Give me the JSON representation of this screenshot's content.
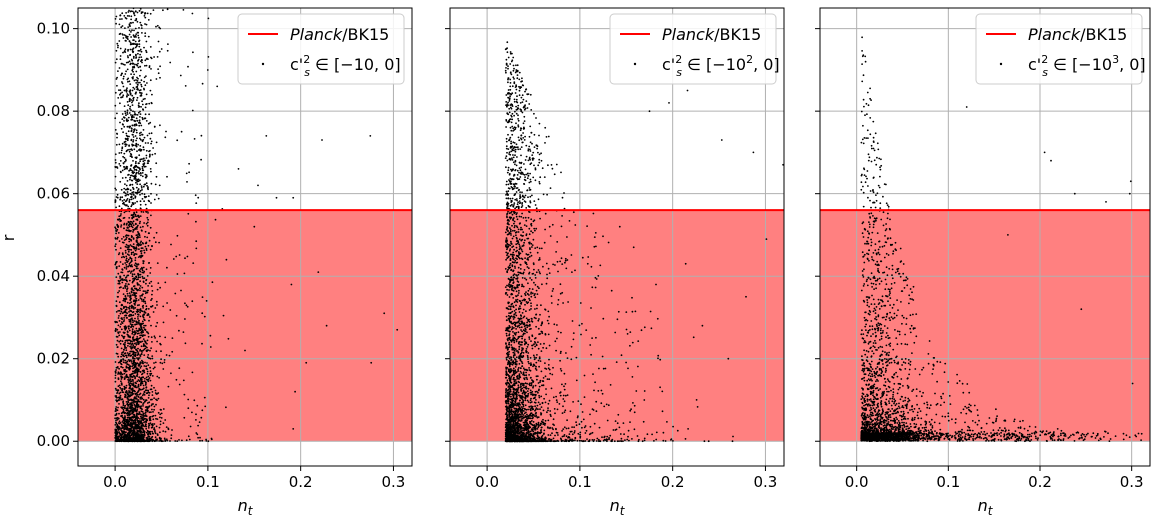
{
  "chart_data": [
    {
      "type": "scatter",
      "panel": "left",
      "xlabel": "n",
      "xlabel_sub": "t",
      "ylabel": "r",
      "xlim": [
        -0.04,
        0.32
      ],
      "ylim": [
        -0.006,
        0.105
      ],
      "xticks": [
        0.0,
        0.1,
        0.2,
        0.3
      ],
      "xtick_labels": [
        "0.0",
        "0.1",
        "0.2",
        "0.3"
      ],
      "yticks": [
        0.0,
        0.02,
        0.04,
        0.06,
        0.08,
        0.1
      ],
      "ytick_labels": [
        "0.00",
        "0.02",
        "0.04",
        "0.06",
        "0.08",
        "0.10"
      ],
      "show_yticklabels": true,
      "grid": true,
      "legend_position": "top-right",
      "constraint": {
        "name_italic": "Planck",
        "name_rest": "/BK15",
        "r_max": 0.056,
        "color": "#ff0000",
        "fill_color": "#ff8080"
      },
      "scatter_series": {
        "legend_prefix": "c'",
        "legend_sup": "2",
        "legend_sub": "s",
        "legend_suffix": " ∈ [−10, 0]",
        "range_min": -10,
        "color": "#000000",
        "n_points": 3600,
        "nt_core_center": 0.02,
        "nt_core_width": 0.012,
        "r_distribution": "concentrated near 0, vertical band up to above 0.10"
      },
      "outlier_points": [
        [
          0.11,
          0.086
        ],
        [
          0.163,
          0.074
        ],
        [
          0.223,
          0.073
        ],
        [
          0.275,
          0.074
        ],
        [
          0.154,
          0.062
        ],
        [
          0.133,
          0.066
        ],
        [
          0.174,
          0.059
        ],
        [
          0.192,
          0.059
        ],
        [
          0.15,
          0.052
        ],
        [
          0.19,
          0.038
        ],
        [
          0.29,
          0.031
        ],
        [
          0.304,
          0.027
        ],
        [
          0.276,
          0.019
        ],
        [
          0.206,
          0.019
        ],
        [
          0.194,
          0.012
        ],
        [
          0.192,
          0.003
        ],
        [
          0.219,
          0.041
        ],
        [
          0.228,
          0.028
        ],
        [
          0.14,
          0.022
        ],
        [
          0.12,
          0.044
        ]
      ]
    },
    {
      "type": "scatter",
      "panel": "middle",
      "xlabel": "n",
      "xlabel_sub": "t",
      "xlim": [
        -0.04,
        0.32
      ],
      "ylim": [
        -0.006,
        0.105
      ],
      "xticks": [
        0.0,
        0.1,
        0.2,
        0.3
      ],
      "xtick_labels": [
        "0.0",
        "0.1",
        "0.2",
        "0.3"
      ],
      "yticks": [
        0.0,
        0.02,
        0.04,
        0.06,
        0.08,
        0.1
      ],
      "show_yticklabels": false,
      "grid": true,
      "legend_position": "top-right",
      "constraint": {
        "name_italic": "Planck",
        "name_rest": "/BK15",
        "r_max": 0.056,
        "color": "#ff0000",
        "fill_color": "#ff8080"
      },
      "scatter_series": {
        "legend_prefix": "c'",
        "legend_sup": "2",
        "legend_sub": "s",
        "legend_suffix_pre": " ∈ [−10",
        "legend_exp": "2",
        "legend_suffix_post": ", 0]",
        "range_min": -100,
        "color": "#000000",
        "n_points": 3600,
        "nt_core_center": 0.025,
        "nt_core_width": 0.03,
        "r_distribution": "dense cluster near origin, tail to larger n_t"
      },
      "outlier_points": [
        [
          0.24,
          0.1
        ],
        [
          0.196,
          0.082
        ],
        [
          0.216,
          0.085
        ],
        [
          0.287,
          0.07
        ],
        [
          0.253,
          0.073
        ],
        [
          0.319,
          0.067
        ],
        [
          0.175,
          0.08
        ],
        [
          0.301,
          0.049
        ],
        [
          0.279,
          0.035
        ],
        [
          0.232,
          0.028
        ],
        [
          0.26,
          0.02
        ],
        [
          0.214,
          0.043
        ],
        [
          0.182,
          0.038
        ],
        [
          0.143,
          0.052
        ],
        [
          0.158,
          0.047
        ]
      ]
    },
    {
      "type": "scatter",
      "panel": "right",
      "xlabel": "n",
      "xlabel_sub": "t",
      "xlim": [
        -0.04,
        0.32
      ],
      "ylim": [
        -0.006,
        0.105
      ],
      "xticks": [
        0.0,
        0.1,
        0.2,
        0.3
      ],
      "xtick_labels": [
        "0.0",
        "0.1",
        "0.2",
        "0.3"
      ],
      "yticks": [
        0.0,
        0.02,
        0.04,
        0.06,
        0.08,
        0.1
      ],
      "show_yticklabels": false,
      "grid": true,
      "legend_position": "top-right",
      "constraint": {
        "name_italic": "Planck",
        "name_rest": "/BK15",
        "r_max": 0.056,
        "color": "#ff0000",
        "fill_color": "#ff8080"
      },
      "scatter_series": {
        "legend_prefix": "c'",
        "legend_sup": "2",
        "legend_sub": "s",
        "legend_suffix_pre": " ∈ [−10",
        "legend_exp": "3",
        "legend_suffix_post": ", 0]",
        "range_min": -1000,
        "color": "#000000",
        "n_points": 3000,
        "nt_core_center": 0.02,
        "nt_core_width": 0.04,
        "r_distribution": "very flat near r≈0 extending far in n_t, sparse tail upward"
      },
      "outlier_points": [
        [
          0.205,
          0.07
        ],
        [
          0.212,
          0.068
        ],
        [
          0.238,
          0.06
        ],
        [
          0.272,
          0.058
        ],
        [
          0.299,
          0.063
        ],
        [
          0.298,
          0.06
        ],
        [
          0.12,
          0.081
        ],
        [
          0.165,
          0.05
        ],
        [
          0.245,
          0.032
        ],
        [
          0.301,
          0.014
        ]
      ]
    }
  ]
}
